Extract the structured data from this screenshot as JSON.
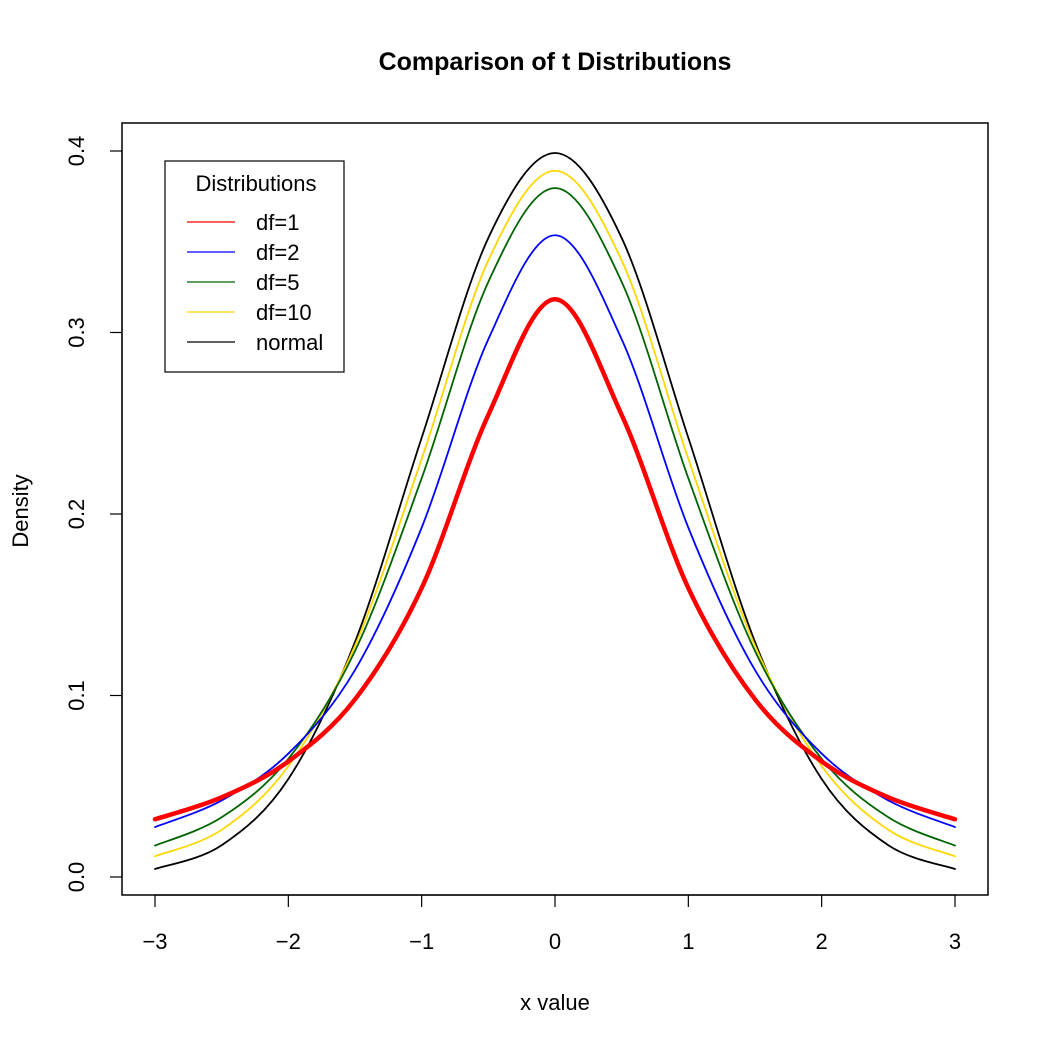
{
  "chart_data": {
    "type": "line",
    "title": "Comparison of t Distributions",
    "xlabel": "x value",
    "ylabel": "Density",
    "xlim": [
      -3,
      3
    ],
    "ylim": [
      0,
      0.4
    ],
    "x_ticks": [
      -3,
      -2,
      -1,
      0,
      1,
      2,
      3
    ],
    "x_tick_labels": [
      "−3",
      "−2",
      "−1",
      "0",
      "1",
      "2",
      "3"
    ],
    "y_ticks": [
      0.0,
      0.1,
      0.2,
      0.3,
      0.4
    ],
    "y_tick_labels": [
      "0.0",
      "0.1",
      "0.2",
      "0.3",
      "0.4"
    ],
    "grid": false,
    "legend": {
      "title": "Distributions",
      "position": "top-left"
    },
    "x": [
      -3.0,
      -2.5,
      -2.0,
      -1.5,
      -1.0,
      -0.5,
      0.0,
      0.5,
      1.0,
      1.5,
      2.0,
      2.5,
      3.0
    ],
    "series": [
      {
        "name": "df=1",
        "color": "#ff0000",
        "values": [
          0.0318,
          0.0439,
          0.0637,
          0.0979,
          0.1592,
          0.2546,
          0.3183,
          0.2546,
          0.1592,
          0.0979,
          0.0637,
          0.0439,
          0.0318
        ]
      },
      {
        "name": "df=2",
        "color": "#0000ff",
        "values": [
          0.0275,
          0.0422,
          0.068,
          0.114,
          0.1925,
          0.2963,
          0.3536,
          0.2963,
          0.1925,
          0.114,
          0.068,
          0.0422,
          0.0275
        ]
      },
      {
        "name": "df=5",
        "color": "#006400",
        "values": [
          0.0173,
          0.0329,
          0.0651,
          0.1245,
          0.2197,
          0.3279,
          0.3796,
          0.3279,
          0.2197,
          0.1245,
          0.0651,
          0.0329,
          0.0173
        ]
      },
      {
        "name": "df=10",
        "color": "#ffd700",
        "values": [
          0.0114,
          0.026,
          0.0611,
          0.1274,
          0.2304,
          0.3397,
          0.3891,
          0.3397,
          0.2304,
          0.1274,
          0.0611,
          0.026,
          0.0114
        ]
      },
      {
        "name": "normal",
        "color": "#000000",
        "values": [
          0.0044,
          0.0175,
          0.054,
          0.1295,
          0.242,
          0.3521,
          0.3989,
          0.3521,
          0.242,
          0.1295,
          0.054,
          0.0175,
          0.0044
        ]
      }
    ]
  }
}
